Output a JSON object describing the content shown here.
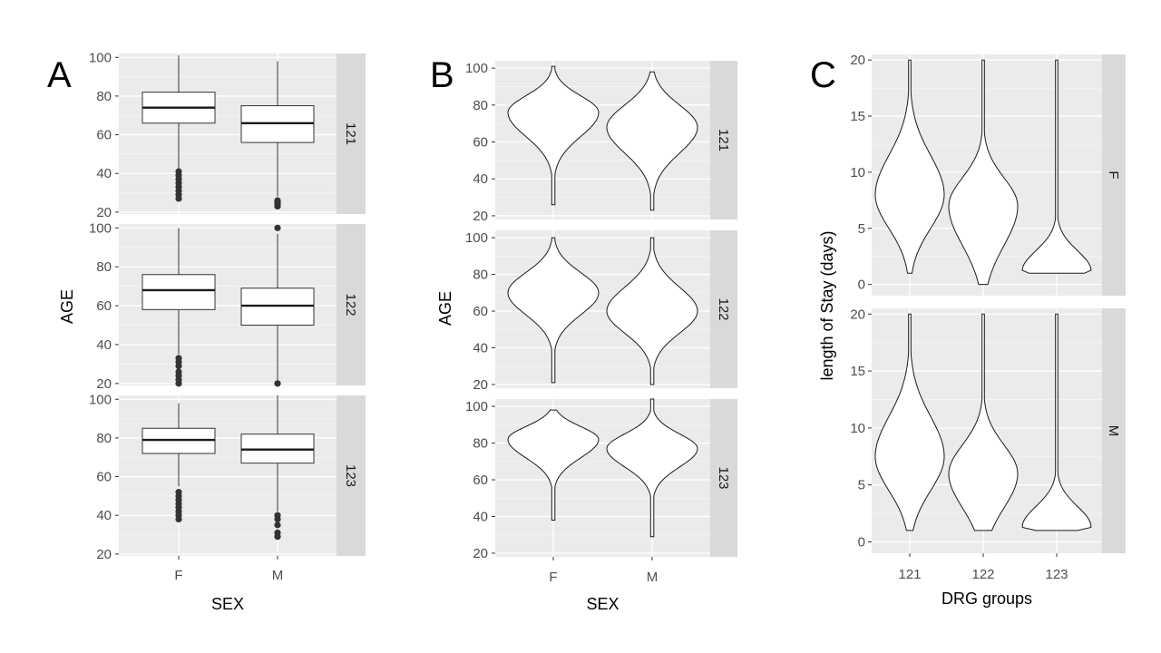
{
  "figure": {
    "panel_letters": [
      "A",
      "B",
      "C"
    ]
  },
  "chart_data": [
    {
      "type": "box",
      "panel": "A",
      "xlabel": "SEX",
      "ylabel": "AGE",
      "categories": [
        "F",
        "M"
      ],
      "facets": [
        "121",
        "122",
        "123"
      ],
      "ylim": [
        19,
        102
      ],
      "yticks": [
        20,
        40,
        60,
        80,
        100
      ],
      "grid": true,
      "boxes": {
        "121": [
          {
            "q1": 66,
            "median": 74,
            "q3": 82,
            "whisker_low": 42,
            "whisker_high": 101,
            "outliers": [
              27,
              29,
              31,
              33,
              35,
              37,
              39,
              41
            ]
          },
          {
            "q1": 56,
            "median": 66,
            "q3": 75,
            "whisker_low": 28,
            "whisker_high": 98,
            "outliers": [
              23,
              24,
              25,
              26
            ]
          }
        ],
        "122": [
          {
            "q1": 58,
            "median": 68,
            "q3": 76,
            "whisker_low": 35,
            "whisker_high": 100,
            "outliers": [
              20,
              22,
              24,
              26,
              29,
              31,
              33
            ]
          },
          {
            "q1": 50,
            "median": 60,
            "q3": 69,
            "whisker_low": 21,
            "whisker_high": 97,
            "outliers": [
              20,
              100
            ]
          }
        ],
        "123": [
          {
            "q1": 72,
            "median": 79,
            "q3": 85,
            "whisker_low": 55,
            "whisker_high": 98,
            "outliers": [
              38,
              40,
              42,
              44,
              46,
              48,
              50,
              52
            ]
          },
          {
            "q1": 67,
            "median": 74,
            "q3": 82,
            "whisker_low": 42,
            "whisker_high": 102,
            "outliers": [
              29,
              31,
              35,
              38,
              40
            ]
          }
        ]
      }
    },
    {
      "type": "violin",
      "panel": "B",
      "xlabel": "SEX",
      "ylabel": "AGE",
      "categories": [
        "F",
        "M"
      ],
      "facets": [
        "121",
        "122",
        "123"
      ],
      "ylim": [
        18,
        104
      ],
      "yticks": [
        20,
        40,
        60,
        80,
        100
      ],
      "grid": true,
      "violins": {
        "121": [
          {
            "min": 26,
            "max": 101,
            "mode": 76,
            "lower_spread": 13,
            "upper_spread": 9
          },
          {
            "min": 23,
            "max": 98,
            "mode": 68,
            "lower_spread": 14,
            "upper_spread": 12
          }
        ],
        "122": [
          {
            "min": 21,
            "max": 100,
            "mode": 70,
            "lower_spread": 12,
            "upper_spread": 11
          },
          {
            "min": 20,
            "max": 100,
            "mode": 60,
            "lower_spread": 12,
            "upper_spread": 13
          }
        ],
        "123": [
          {
            "min": 38,
            "max": 98,
            "mode": 82,
            "lower_spread": 10,
            "upper_spread": 7
          },
          {
            "min": 29,
            "max": 104,
            "mode": 77,
            "lower_spread": 10,
            "upper_spread": 8
          }
        ]
      }
    },
    {
      "type": "violin",
      "panel": "C",
      "xlabel": "DRG groups",
      "ylabel": "length of Stay (days)",
      "categories": [
        "121",
        "122",
        "123"
      ],
      "facets": [
        "F",
        "M"
      ],
      "ylim": [
        -1,
        20.5
      ],
      "yticks": [
        0,
        5,
        10,
        15,
        20
      ],
      "grid": true,
      "violins": {
        "F": [
          {
            "min": 1,
            "max": 20,
            "mode": 8,
            "lower_spread": 3,
            "upper_spread": 3.5
          },
          {
            "min": 0,
            "max": 20,
            "mode": 7,
            "lower_spread": 3.5,
            "upper_spread": 2.5
          },
          {
            "min": 1,
            "max": 20,
            "mode": 1.2,
            "lower_spread": 0.3,
            "upper_spread": 1.8
          }
        ],
        "M": [
          {
            "min": 1,
            "max": 20,
            "mode": 7.5,
            "lower_spread": 3,
            "upper_spread": 3.5
          },
          {
            "min": 1,
            "max": 20,
            "mode": 6,
            "lower_spread": 3,
            "upper_spread": 2.5
          },
          {
            "min": 1,
            "max": 20,
            "mode": 1.3,
            "lower_spread": 0.3,
            "upper_spread": 1.8
          }
        ]
      }
    }
  ]
}
